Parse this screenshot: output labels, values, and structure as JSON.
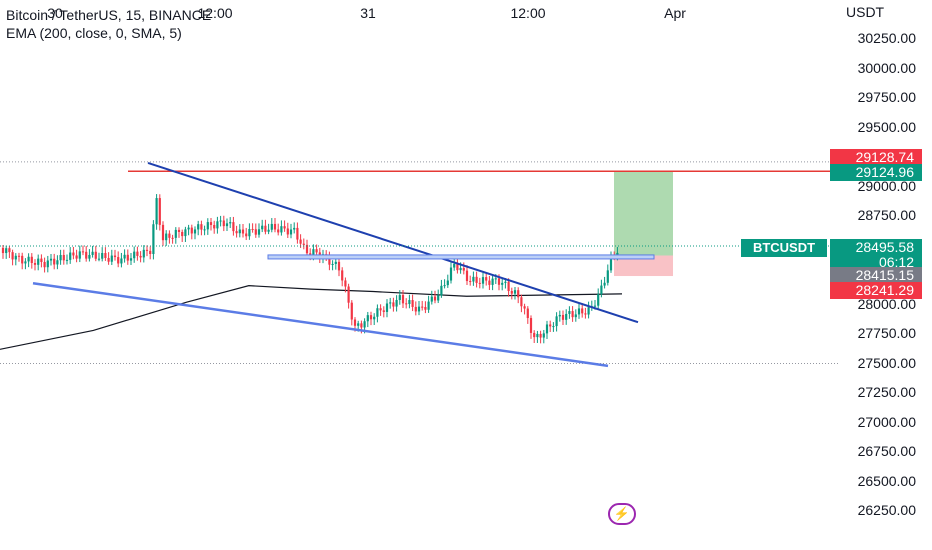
{
  "header": {
    "title": "Bitcoin / TetherUS, 15, BINANCE",
    "indicator": "EMA (200, close, 0, SMA, 5)"
  },
  "price_scale": {
    "currency": "USDT",
    "ticks": [
      "30250.00",
      "30000.00",
      "29750.00",
      "29500.00",
      "29250.00",
      "29000.00",
      "28750.00",
      "28500.00",
      "28250.00",
      "28000.00",
      "27750.00",
      "27500.00",
      "27250.00",
      "27000.00",
      "26750.00",
      "26500.00",
      "26250.00"
    ]
  },
  "time_axis": {
    "labels": [
      "30",
      "12:00",
      "31",
      "12:00",
      "Apr"
    ]
  },
  "badges": {
    "target": "29128.74",
    "tp": "29124.96",
    "symbol": "BTCUSDT",
    "last_price": "28495.58",
    "countdown": "06:12",
    "entry": "28415.15",
    "stop": "28241.29"
  },
  "colors": {
    "up": "#089981",
    "down": "#f23645",
    "trendline": "#1e40af",
    "channel": "#5b7ce6",
    "resistance": "#e53935",
    "ema": "#131722",
    "profit_zone": "#a5d6a7",
    "loss_zone": "#f8bbc0"
  },
  "icons": {
    "lightning": "lightning-icon"
  },
  "chart_data": {
    "type": "candlestick",
    "symbol": "Bitcoin / TetherUS",
    "interval": "15",
    "exchange": "BINANCE",
    "y_range": [
      26250,
      30300
    ],
    "last_price": 28495.58,
    "ema_200": [
      {
        "t": 0,
        "v": 27620
      },
      {
        "t": 0.15,
        "v": 27780
      },
      {
        "t": 0.3,
        "v": 28020
      },
      {
        "t": 0.4,
        "v": 28160
      },
      {
        "t": 0.5,
        "v": 28130
      },
      {
        "t": 0.6,
        "v": 28110
      },
      {
        "t": 0.75,
        "v": 28070
      },
      {
        "t": 1,
        "v": 28090
      }
    ],
    "levels": {
      "resistance": 29128.74,
      "take_profit": 29124.96,
      "entry": 28415.15,
      "stop_loss": 28241.29
    }
  }
}
